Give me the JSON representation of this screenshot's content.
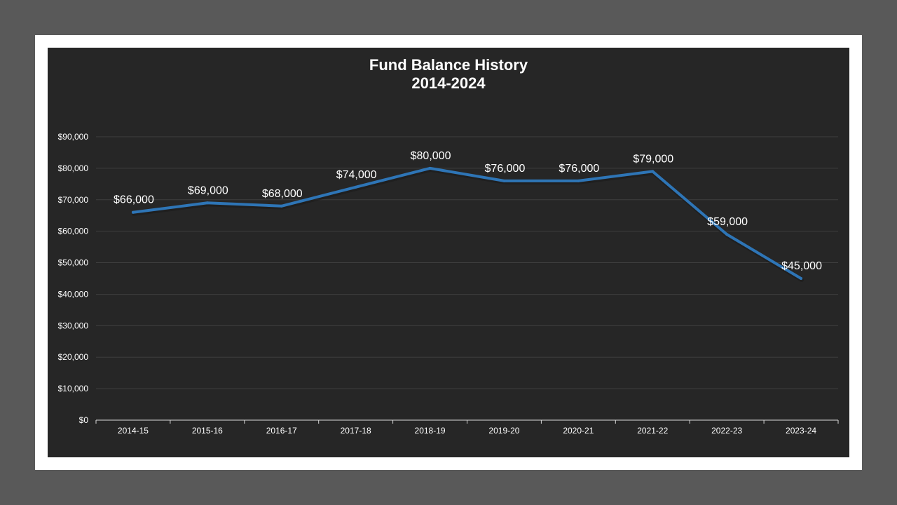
{
  "chart_data": {
    "type": "line",
    "title": "Fund Balance History",
    "subtitle": "2014-2024",
    "xlabel": "",
    "ylabel": "",
    "categories": [
      "2014-15",
      "2015-16",
      "2016-17",
      "2017-18",
      "2018-19",
      "2019-20",
      "2020-21",
      "2021-22",
      "2022-23",
      "2023-24"
    ],
    "values": [
      66000,
      69000,
      68000,
      74000,
      80000,
      76000,
      76000,
      79000,
      59000,
      45000
    ],
    "data_labels": [
      "$66,000",
      "$69,000",
      "$68,000",
      "$74,000",
      "$80,000",
      "$76,000",
      "$76,000",
      "$79,000",
      "$59,000",
      "$45,000"
    ],
    "y_ticks": [
      0,
      10000,
      20000,
      30000,
      40000,
      50000,
      60000,
      70000,
      80000,
      90000
    ],
    "y_tick_labels": [
      "$0",
      "$10,000",
      "$20,000",
      "$30,000",
      "$40,000",
      "$50,000",
      "$60,000",
      "$70,000",
      "$80,000",
      "$90,000"
    ],
    "ylim": [
      0,
      90000
    ],
    "grid": true,
    "legend": "none",
    "colors": {
      "line": "#2e75b6",
      "background": "#262626",
      "frame": "#ffffff",
      "page": "#595959",
      "grid": "#3f3f3f",
      "text": "#ffffff"
    }
  }
}
